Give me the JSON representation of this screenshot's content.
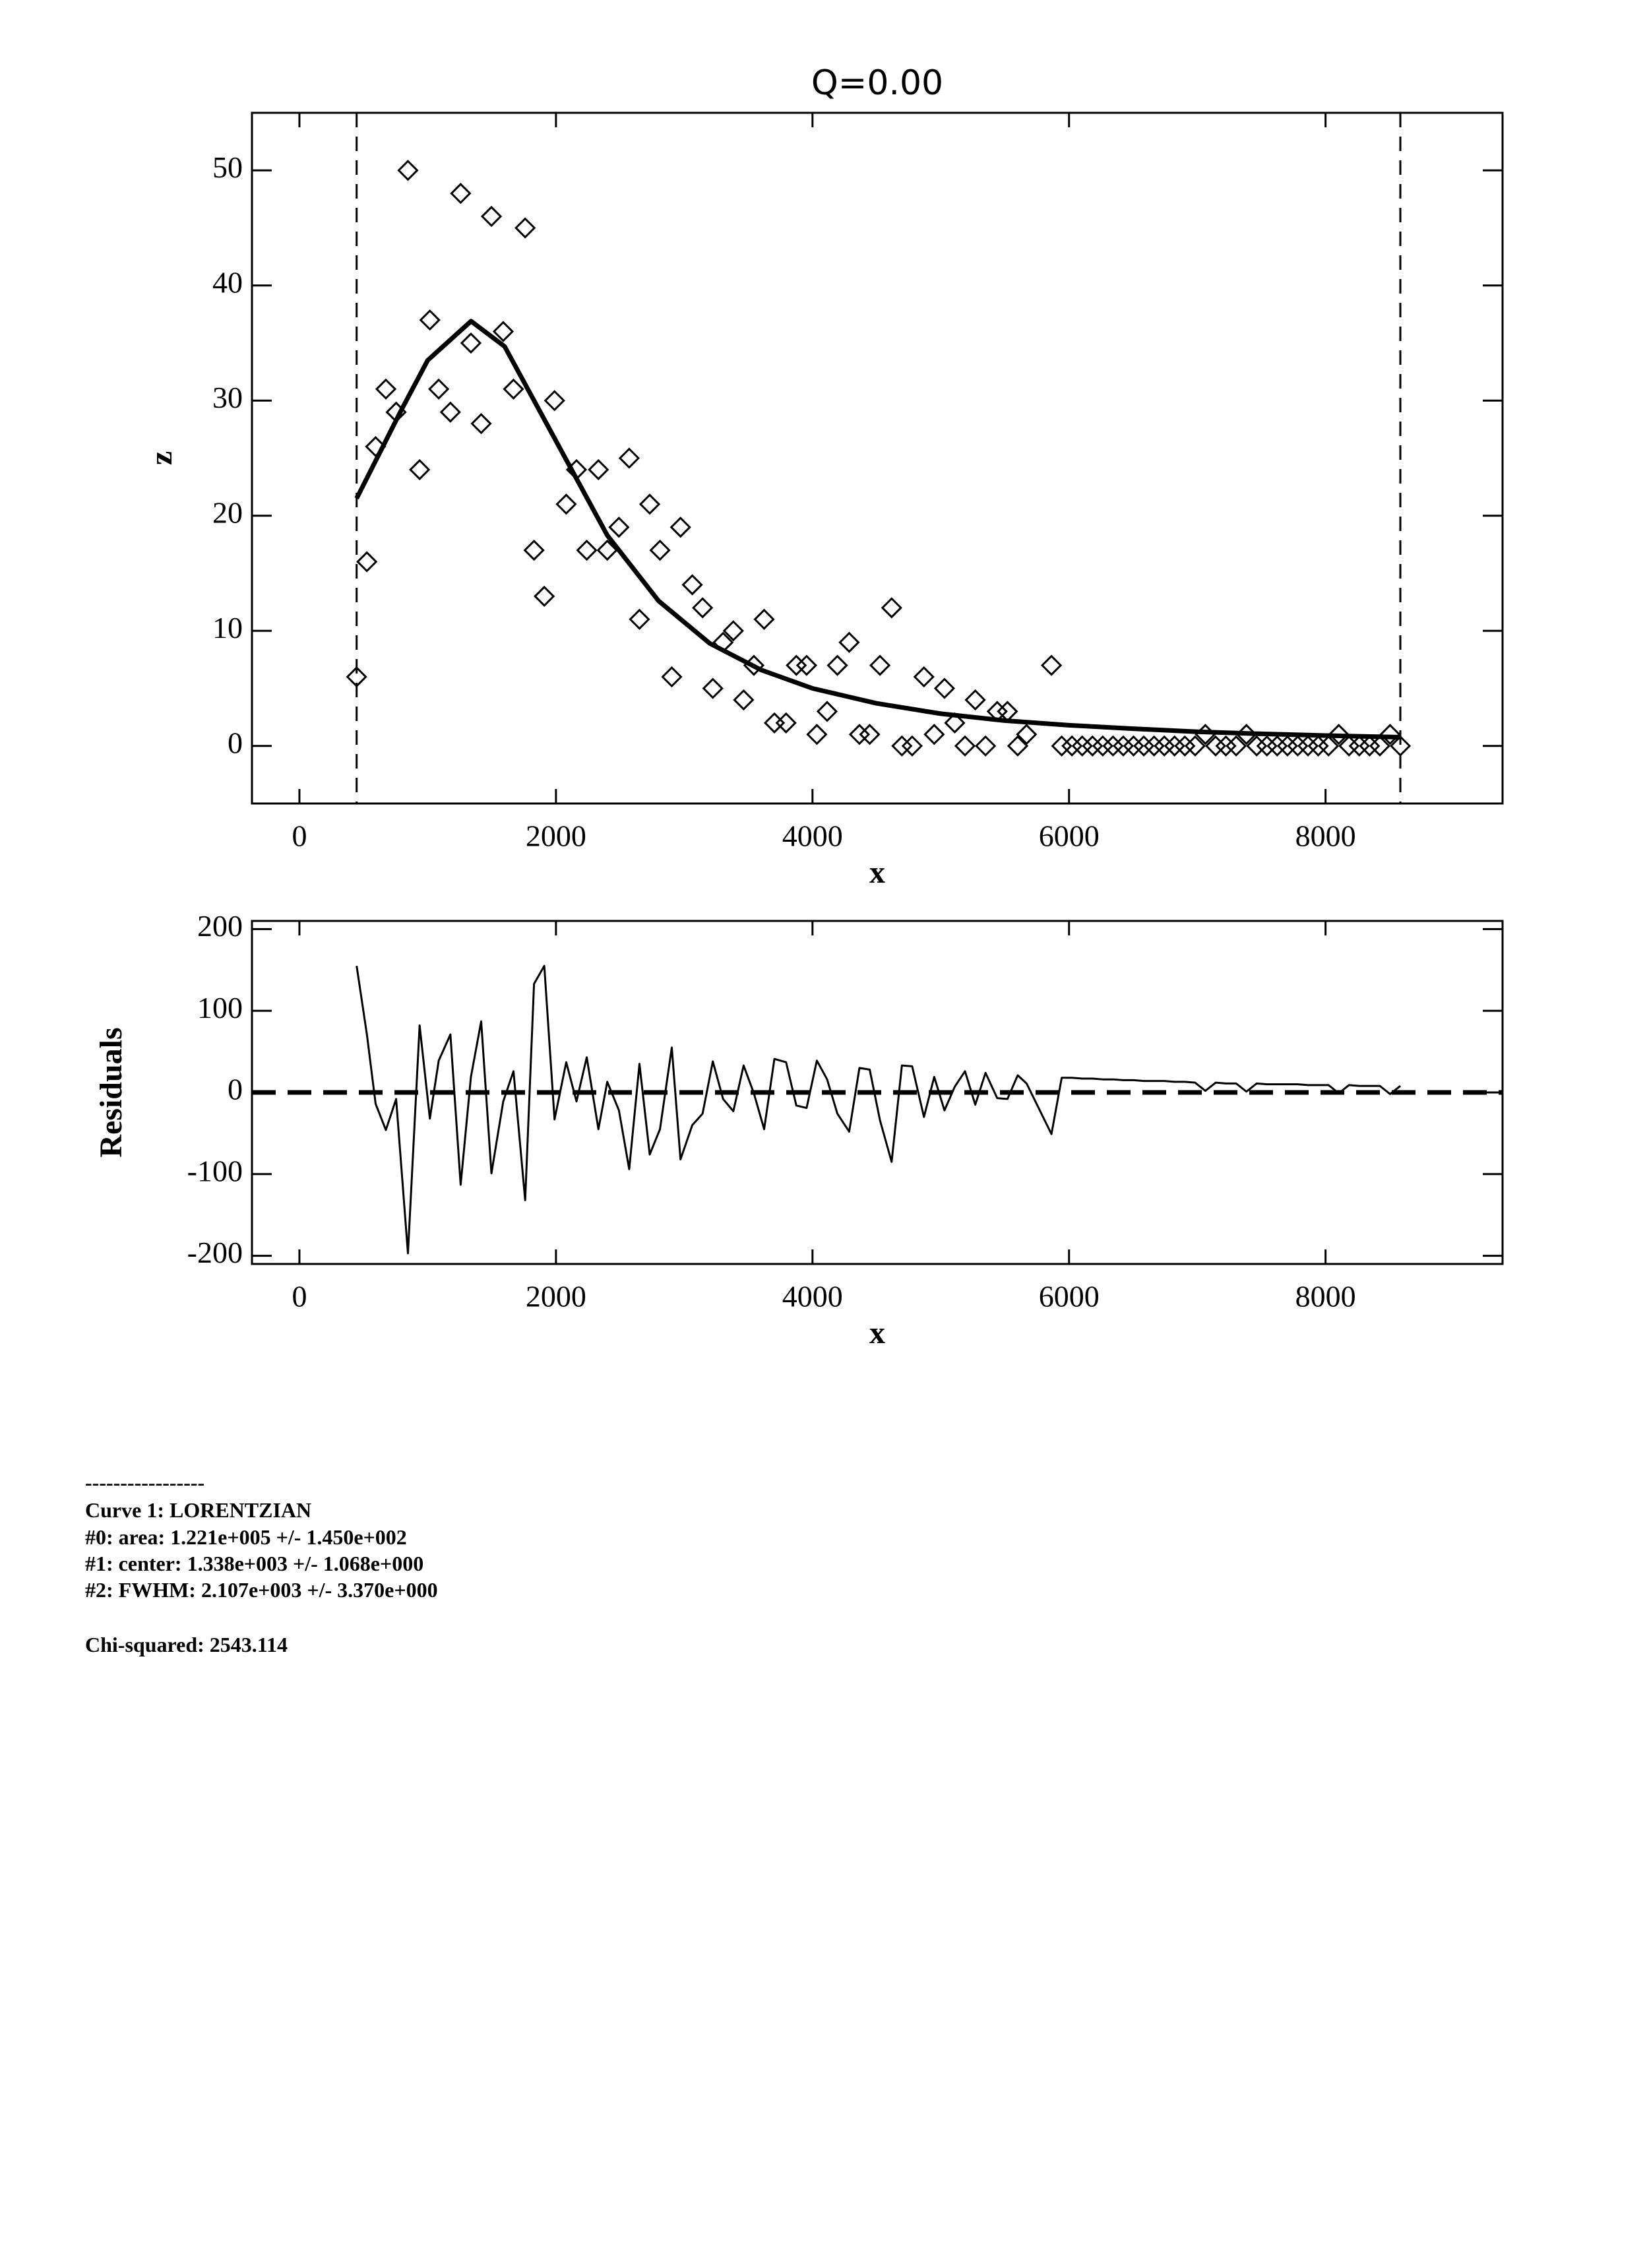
{
  "chart_data": [
    {
      "type": "scatter",
      "title": "Q=0.00",
      "xlabel": "x",
      "ylabel": "z",
      "x": [
        446,
        526,
        594,
        674,
        754,
        846,
        937,
        1017,
        1086,
        1177,
        1257,
        1337,
        1417,
        1497,
        1589,
        1669,
        1760,
        1829,
        1909,
        1989,
        2080,
        2160,
        2240,
        2331,
        2400,
        2491,
        2571,
        2651,
        2731,
        2811,
        2903,
        2971,
        3063,
        3143,
        3223,
        3303,
        3383,
        3463,
        3543,
        3623,
        3703,
        3794,
        3874,
        3954,
        4034,
        4114,
        4194,
        4286,
        4366,
        4446,
        4526,
        4617,
        4697,
        4777,
        4869,
        4949,
        5029,
        5109,
        5189,
        5269,
        5349,
        5440,
        5520,
        5600,
        5669,
        5863,
        5943,
        6023,
        6103,
        6183,
        6263,
        6343,
        6423,
        6503,
        6583,
        6663,
        6743,
        6823,
        6903,
        6983,
        7063,
        7143,
        7223,
        7303,
        7383,
        7463,
        7543,
        7623,
        7703,
        7783,
        7863,
        7943,
        8023,
        8103,
        8183,
        8263,
        8343,
        8423,
        8503,
        8583
      ],
      "values": [
        6,
        16,
        26,
        31,
        29,
        50,
        24,
        37,
        31,
        29,
        48,
        35,
        28,
        46,
        36,
        31,
        45,
        17,
        13,
        30,
        21,
        24,
        17,
        24,
        17,
        19,
        25,
        11,
        21,
        17,
        6,
        19,
        14,
        12,
        5,
        9,
        10,
        4,
        7,
        11,
        2,
        2,
        7,
        7,
        1,
        3,
        7,
        9,
        1,
        1,
        7,
        12,
        0,
        0,
        6,
        1,
        5,
        2,
        0,
        4,
        0,
        3,
        3,
        0,
        1,
        7,
        0,
        0,
        0,
        0,
        0,
        0,
        0,
        0,
        0,
        0,
        0,
        0,
        0,
        0,
        1,
        0,
        0,
        0,
        1,
        0,
        0,
        0,
        0,
        0,
        0,
        0,
        0,
        1,
        0,
        0,
        0,
        0,
        1,
        0
      ],
      "fit": {
        "x": [
          446,
          800,
          1000,
          1338,
          1600,
          2000,
          2400,
          2800,
          3200,
          3600,
          4000,
          4500,
          5000,
          5500,
          6000,
          6500,
          7000,
          7500,
          8000,
          8583
        ],
        "values": [
          21.5,
          29.3,
          33.5,
          36.9,
          34.7,
          26.5,
          18.3,
          12.6,
          8.9,
          6.6,
          5.0,
          3.7,
          2.8,
          2.2,
          1.8,
          1.5,
          1.23,
          1.05,
          0.9,
          0.76
        ]
      },
      "range_markers": [
        446,
        8583
      ],
      "color": "#000000",
      "xlim": [
        -370,
        9380
      ],
      "ylim": [
        -5,
        55
      ],
      "xticks": [
        0,
        2000,
        4000,
        6000,
        8000
      ],
      "yticks": [
        0,
        10,
        20,
        30,
        40,
        50
      ]
    },
    {
      "type": "line",
      "xlabel": "x",
      "ylabel": "Residuals",
      "x": [
        446,
        526,
        594,
        674,
        754,
        846,
        937,
        1017,
        1086,
        1177,
        1257,
        1337,
        1417,
        1497,
        1589,
        1669,
        1760,
        1829,
        1909,
        1989,
        2080,
        2160,
        2240,
        2331,
        2400,
        2491,
        2571,
        2651,
        2731,
        2811,
        2903,
        2971,
        3063,
        3143,
        3223,
        3303,
        3383,
        3463,
        3543,
        3623,
        3703,
        3794,
        3874,
        3954,
        4034,
        4114,
        4194,
        4286,
        4366,
        4446,
        4526,
        4617,
        4697,
        4777,
        4869,
        4949,
        5029,
        5109,
        5189,
        5269,
        5349,
        5440,
        5520,
        5600,
        5669,
        5863,
        5943,
        6023,
        6103,
        6183,
        6263,
        6343,
        6423,
        6503,
        6583,
        6663,
        6743,
        6823,
        6903,
        6983,
        7063,
        7143,
        7223,
        7303,
        7383,
        7463,
        7543,
        7623,
        7703,
        7783,
        7863,
        7943,
        8023,
        8103,
        8183,
        8263,
        8343,
        8423,
        8503,
        8583
      ],
      "values": [
        155,
        71,
        -14,
        -46,
        -8,
        -197,
        82,
        -32,
        39,
        71,
        -113,
        19,
        87,
        -99,
        -11,
        26,
        -132,
        133,
        155,
        -33,
        37,
        -11,
        43,
        -45,
        13,
        -22,
        -94,
        35,
        -76,
        -45,
        55,
        -82,
        -40,
        -26,
        38,
        -8,
        -23,
        33,
        -1,
        -45,
        41,
        37,
        -16,
        -19,
        39,
        16,
        -26,
        -48,
        30,
        28,
        -34,
        -85,
        33,
        32,
        -30,
        19,
        -22,
        7,
        26,
        -15,
        24,
        -7,
        -8,
        21,
        11,
        -51,
        18,
        18,
        17,
        17,
        16,
        16,
        15,
        15,
        14,
        14,
        14,
        13,
        13,
        12,
        2,
        12,
        11,
        11,
        1,
        11,
        10,
        10,
        10,
        10,
        9,
        9,
        9,
        -1,
        9,
        8,
        8,
        8,
        -2,
        8
      ],
      "reference_line": 0,
      "color": "#000000",
      "xlim": [
        -370,
        9380
      ],
      "ylim": [
        -210,
        210
      ],
      "xticks": [
        0,
        2000,
        4000,
        6000,
        8000
      ],
      "yticks": [
        -200,
        -100,
        0,
        100,
        200
      ]
    }
  ],
  "fit_report": {
    "separator": "-----------------",
    "curve": "Curve 1: LORENTZIAN",
    "parameters": [
      "#0: area: 1.221e+005 +/- 1.450e+002",
      "#1: center: 1.338e+003 +/- 1.068e+000",
      "#2: FWHM: 2.107e+003 +/- 3.370e+000"
    ],
    "chi_squared": "Chi-squared: 2543.114"
  }
}
